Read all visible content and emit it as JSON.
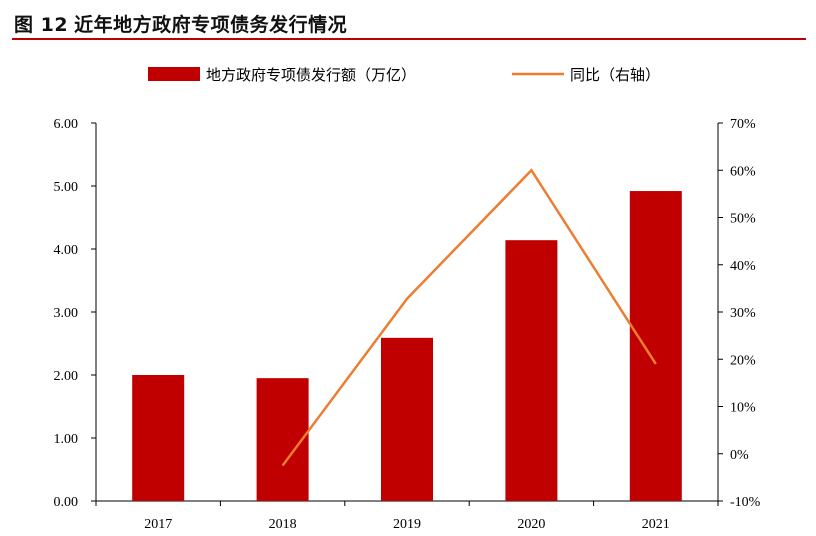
{
  "figure": {
    "number": "图 12",
    "title": "近年地方政府专项债务发行情况"
  },
  "colors": {
    "bar": "#c00000",
    "line": "#ed7d31",
    "accent_rule": "#c00000",
    "axis": "#000000"
  },
  "chart_data": {
    "type": "bar",
    "categories": [
      "2017",
      "2018",
      "2019",
      "2020",
      "2021"
    ],
    "series": [
      {
        "name": "地方政府专项债发行额（万亿）",
        "type": "bar",
        "axis": "left",
        "values": [
          2.0,
          1.95,
          2.59,
          4.14,
          4.92
        ]
      },
      {
        "name": "同比（右轴）",
        "type": "line",
        "axis": "right",
        "values": [
          null,
          -2.5,
          32.8,
          60.0,
          19.0
        ]
      }
    ],
    "y_left": {
      "ylim": [
        0,
        6
      ],
      "ticks": [
        "0.00",
        "1.00",
        "2.00",
        "3.00",
        "4.00",
        "5.00",
        "6.00"
      ]
    },
    "y_right": {
      "ylim": [
        -10,
        70
      ],
      "ticks": [
        "-10%",
        "0%",
        "10%",
        "20%",
        "30%",
        "40%",
        "50%",
        "60%",
        "70%"
      ]
    },
    "legend_position": "top-center",
    "grid": false
  }
}
